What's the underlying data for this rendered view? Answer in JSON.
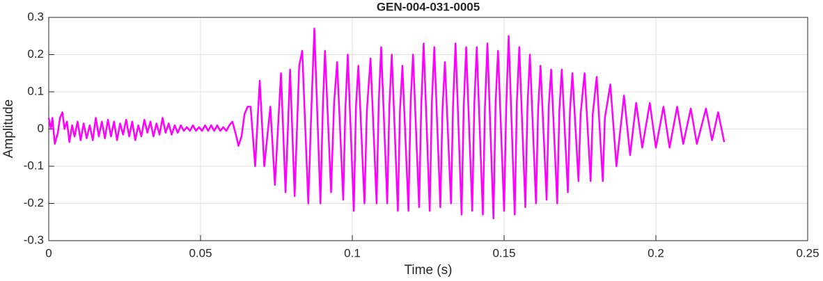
{
  "chart_data": {
    "type": "line",
    "title": "GEN-004-031-0005",
    "x_label": "Time (s)",
    "y_label": "Amplitude",
    "color": "#ff00ff",
    "grid": true,
    "xlim": [
      0,
      0.25
    ],
    "xticks": [
      0,
      0.05,
      0.1,
      0.15,
      0.2,
      0.25
    ],
    "ylim": [
      -0.3,
      0.3
    ],
    "yticks": [
      -0.3,
      -0.2,
      -0.1,
      0,
      0.1,
      0.2,
      0.3
    ],
    "x": [
      0,
      0.0007,
      0.0012,
      0.002,
      0.003,
      0.0037,
      0.0045,
      0.0052,
      0.006,
      0.0068,
      0.0077,
      0.0085,
      0.0095,
      0.0105,
      0.0115,
      0.0125,
      0.0135,
      0.0145,
      0.0155,
      0.0165,
      0.0175,
      0.0185,
      0.0195,
      0.0205,
      0.0215,
      0.0225,
      0.0235,
      0.0245,
      0.0255,
      0.0265,
      0.0275,
      0.0285,
      0.0295,
      0.0305,
      0.0315,
      0.0325,
      0.0335,
      0.0345,
      0.0355,
      0.0365,
      0.0375,
      0.0385,
      0.0395,
      0.0405,
      0.0415,
      0.0425,
      0.0435,
      0.0445,
      0.0455,
      0.0465,
      0.0475,
      0.0485,
      0.0495,
      0.0505,
      0.0515,
      0.0525,
      0.0535,
      0.0545,
      0.0555,
      0.0565,
      0.0575,
      0.0585,
      0.0595,
      0.0605,
      0.0615,
      0.0625,
      0.0635,
      0.0645,
      0.0655,
      0.0665,
      0.068,
      0.0695,
      0.071,
      0.073,
      0.0745,
      0.0765,
      0.078,
      0.0795,
      0.081,
      0.0825,
      0.0835,
      0.0855,
      0.0865,
      0.0875,
      0.0895,
      0.0903,
      0.091,
      0.093,
      0.094,
      0.095,
      0.097,
      0.0977,
      0.0985,
      0.1005,
      0.1012,
      0.102,
      0.104,
      0.1048,
      0.106,
      0.108,
      0.1087,
      0.1095,
      0.1115,
      0.1122,
      0.113,
      0.115,
      0.1157,
      0.1165,
      0.1185,
      0.1192,
      0.12,
      0.122,
      0.1227,
      0.1235,
      0.1255,
      0.1262,
      0.127,
      0.129,
      0.1297,
      0.1305,
      0.1325,
      0.1332,
      0.134,
      0.136,
      0.1367,
      0.1375,
      0.1395,
      0.1402,
      0.141,
      0.143,
      0.1437,
      0.1445,
      0.1465,
      0.1472,
      0.148,
      0.15,
      0.1507,
      0.1515,
      0.1535,
      0.1542,
      0.155,
      0.157,
      0.1577,
      0.1585,
      0.1605,
      0.1612,
      0.162,
      0.164,
      0.1647,
      0.1655,
      0.1675,
      0.1682,
      0.169,
      0.171,
      0.1717,
      0.1725,
      0.1745,
      0.1752,
      0.1765,
      0.1785,
      0.1792,
      0.1805,
      0.1825,
      0.1832,
      0.185,
      0.187,
      0.1895,
      0.1915,
      0.1935,
      0.1955,
      0.198,
      0.2,
      0.2025,
      0.2045,
      0.207,
      0.209,
      0.2115,
      0.2135,
      0.2165,
      0.2185,
      0.2205,
      0.2225
    ],
    "values": [
      0.03,
      0.0,
      0.03,
      -0.04,
      -0.01,
      0.03,
      0.045,
      0.0,
      0.02,
      -0.035,
      0.01,
      -0.02,
      0.02,
      -0.03,
      0.015,
      -0.025,
      0.01,
      -0.03,
      0.03,
      -0.02,
      0.02,
      -0.025,
      0.025,
      -0.02,
      0.02,
      -0.03,
      0.015,
      -0.015,
      0.025,
      -0.02,
      0.02,
      -0.03,
      0.01,
      -0.02,
      0.025,
      -0.01,
      0.02,
      -0.02,
      0.015,
      -0.015,
      0.03,
      -0.01,
      0.015,
      -0.015,
      0.01,
      -0.01,
      0.01,
      -0.005,
      0.005,
      -0.005,
      0.01,
      -0.005,
      0.005,
      -0.005,
      0.01,
      -0.005,
      0.01,
      -0.005,
      0.01,
      -0.005,
      0.005,
      -0.005,
      0.01,
      0.02,
      -0.01,
      -0.045,
      -0.02,
      0.04,
      0.06,
      0.06,
      -0.1,
      0.13,
      -0.1,
      0.06,
      -0.15,
      0.15,
      -0.17,
      0.16,
      -0.18,
      0.17,
      0.21,
      -0.2,
      0.05,
      0.27,
      -0.2,
      0.06,
      0.21,
      -0.17,
      0.07,
      0.18,
      -0.19,
      0.05,
      0.2,
      -0.22,
      0.06,
      0.17,
      -0.2,
      0.05,
      0.19,
      -0.2,
      0.07,
      0.22,
      -0.2,
      0.06,
      0.2,
      -0.22,
      0.05,
      0.17,
      -0.22,
      0.07,
      0.2,
      -0.21,
      0.06,
      0.23,
      -0.22,
      0.07,
      0.22,
      -0.21,
      0.05,
      0.18,
      -0.2,
      0.07,
      0.23,
      -0.23,
      0.06,
      0.22,
      -0.22,
      0.07,
      0.22,
      -0.23,
      0.06,
      0.23,
      -0.24,
      0.07,
      0.21,
      -0.22,
      0.06,
      0.25,
      -0.23,
      0.07,
      0.22,
      -0.21,
      0.06,
      0.2,
      -0.2,
      0.05,
      0.17,
      -0.19,
      0.06,
      0.16,
      -0.2,
      0.05,
      0.16,
      -0.17,
      0.05,
      0.15,
      -0.14,
      0.04,
      0.15,
      -0.14,
      0.04,
      0.14,
      -0.14,
      0.03,
      0.12,
      -0.1,
      0.09,
      -0.07,
      0.07,
      -0.05,
      0.07,
      -0.05,
      0.06,
      -0.05,
      0.06,
      -0.04,
      0.055,
      -0.04,
      0.055,
      -0.03,
      0.045,
      -0.035
    ]
  }
}
